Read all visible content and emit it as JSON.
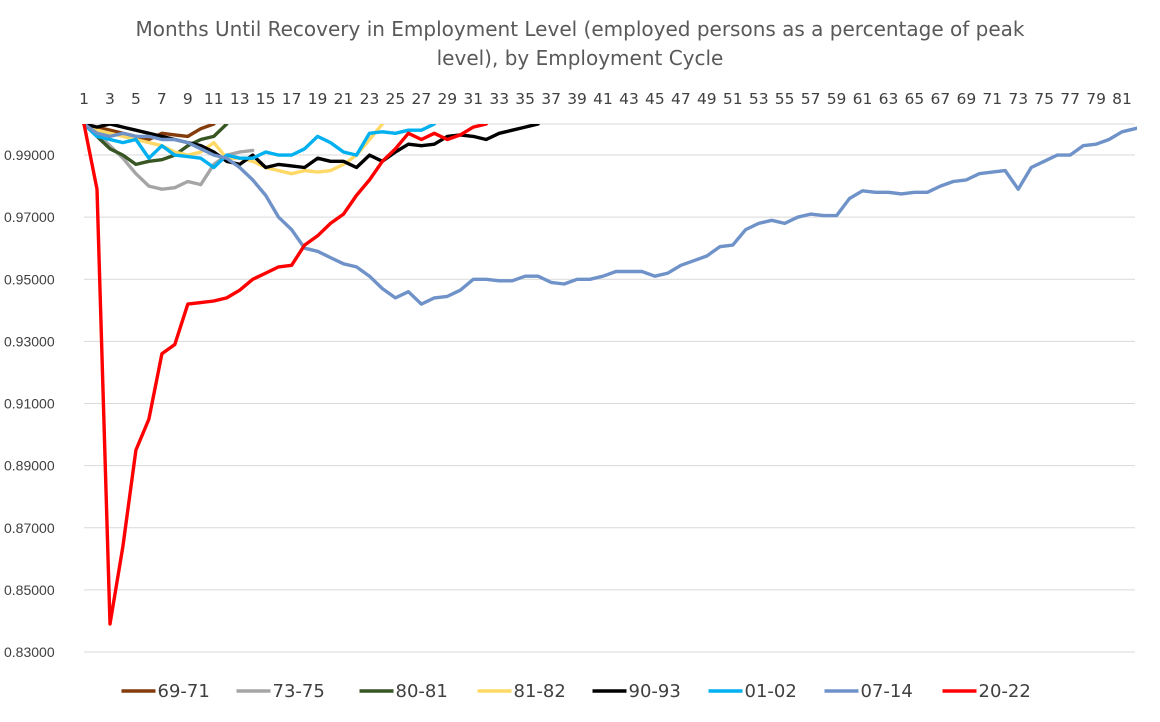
{
  "chart_data": {
    "type": "line",
    "title": "Months Until Recovery in Employment Level (employed persons as a percentage of peak level), by Employment Cycle",
    "title_lines": [
      "Months Until Recovery in Employment Level (employed persons as a percentage of peak",
      "level), by Employment Cycle"
    ],
    "xlabel": "",
    "ylabel": "",
    "x_axis_position": "top",
    "x_ticks": [
      1,
      3,
      5,
      7,
      9,
      11,
      13,
      15,
      17,
      19,
      21,
      23,
      25,
      27,
      29,
      31,
      33,
      35,
      37,
      39,
      41,
      43,
      45,
      47,
      49,
      51,
      53,
      55,
      57,
      59,
      61,
      63,
      65,
      67,
      69,
      71,
      73,
      75,
      77,
      79,
      81
    ],
    "x_tick_labels": [
      "1",
      "3",
      "5",
      "7",
      "9",
      "11",
      "13",
      "15",
      "17",
      "19",
      "21",
      "23",
      "25",
      "27",
      "29",
      "31",
      "33",
      "35",
      "37",
      "39",
      "41",
      "43",
      "45",
      "47",
      "49",
      "51",
      "53",
      "55",
      "57",
      "59",
      "61",
      "63",
      "65",
      "67",
      "69",
      "71",
      "73",
      "75",
      "77",
      "79",
      "81"
    ],
    "xlim": [
      1,
      82
    ],
    "y_ticks": [
      0.83,
      0.85,
      0.87,
      0.89,
      0.91,
      0.93,
      0.95,
      0.97,
      0.99
    ],
    "y_tick_labels": [
      "0.83000",
      "0.85000",
      "0.87000",
      "0.89000",
      "0.91000",
      "0.93000",
      "0.95000",
      "0.97000",
      "0.99000"
    ],
    "ylim": [
      0.83,
      1.0
    ],
    "grid": true,
    "legend_position": "bottom",
    "series": [
      {
        "name": "69-71",
        "color": "#843c0c",
        "start_x": 1,
        "values": [
          1.0,
          0.999,
          0.998,
          0.997,
          0.996,
          0.995,
          0.997,
          0.9965,
          0.996,
          0.9985,
          1.0
        ]
      },
      {
        "name": "73-75",
        "color": "#a5a5a5",
        "start_x": 1,
        "values": [
          1.0,
          0.997,
          0.993,
          0.989,
          0.984,
          0.98,
          0.979,
          0.9795,
          0.9815,
          0.9805,
          0.987,
          0.99,
          0.991,
          0.9915
        ]
      },
      {
        "name": "80-81",
        "color": "#375623",
        "start_x": 1,
        "values": [
          1.0,
          0.996,
          0.992,
          0.99,
          0.987,
          0.988,
          0.9885,
          0.99,
          0.993,
          0.995,
          0.996,
          1.0
        ]
      },
      {
        "name": "81-82",
        "color": "#ffd966",
        "start_x": 1,
        "values": [
          1.0,
          0.998,
          0.997,
          0.996,
          0.995,
          0.994,
          0.993,
          0.991,
          0.99,
          0.991,
          0.994,
          0.989,
          0.989,
          0.988,
          0.986,
          0.985,
          0.984,
          0.985,
          0.9845,
          0.985,
          0.987,
          0.99,
          0.995,
          1.0
        ]
      },
      {
        "name": "90-93",
        "color": "#000000",
        "start_x": 1,
        "values": [
          1.0,
          0.999,
          1.0,
          0.999,
          0.998,
          0.997,
          0.996,
          0.995,
          0.994,
          0.993,
          0.991,
          0.988,
          0.987,
          0.99,
          0.986,
          0.987,
          0.9865,
          0.986,
          0.989,
          0.988,
          0.988,
          0.986,
          0.99,
          0.988,
          0.991,
          0.9935,
          0.993,
          0.9935,
          0.996,
          0.9965,
          0.996,
          0.995,
          0.997,
          0.998,
          0.999,
          1.0
        ]
      },
      {
        "name": "01-02",
        "color": "#00b0f0",
        "start_x": 1,
        "values": [
          1.0,
          0.996,
          0.995,
          0.994,
          0.995,
          0.989,
          0.993,
          0.99,
          0.9895,
          0.989,
          0.986,
          0.99,
          0.989,
          0.989,
          0.991,
          0.99,
          0.99,
          0.992,
          0.996,
          0.994,
          0.991,
          0.99,
          0.997,
          0.9975,
          0.997,
          0.998,
          0.998,
          1.0
        ]
      },
      {
        "name": "07-14",
        "color": "#6f92c9",
        "start_x": 1,
        "values": [
          1.0,
          0.997,
          0.996,
          0.997,
          0.996,
          0.996,
          0.995,
          0.995,
          0.994,
          0.992,
          0.99,
          0.989,
          0.986,
          0.982,
          0.977,
          0.97,
          0.966,
          0.96,
          0.959,
          0.957,
          0.955,
          0.954,
          0.951,
          0.947,
          0.944,
          0.946,
          0.942,
          0.944,
          0.9445,
          0.9465,
          0.95,
          0.95,
          0.9495,
          0.9495,
          0.951,
          0.951,
          0.949,
          0.9485,
          0.95,
          0.95,
          0.951,
          0.9525,
          0.9525,
          0.9525,
          0.951,
          0.952,
          0.9545,
          0.956,
          0.9575,
          0.9605,
          0.961,
          0.966,
          0.968,
          0.969,
          0.968,
          0.97,
          0.971,
          0.9705,
          0.9705,
          0.976,
          0.9785,
          0.978,
          0.978,
          0.9775,
          0.978,
          0.978,
          0.98,
          0.9815,
          0.982,
          0.984,
          0.9845,
          0.985,
          0.979,
          0.986,
          0.988,
          0.99,
          0.99,
          0.993,
          0.9935,
          0.995,
          0.9975,
          0.9985,
          0.9995
        ]
      },
      {
        "name": "20-22",
        "color": "#ff0000",
        "start_x": 1,
        "values": [
          1.0,
          0.979,
          0.839,
          0.864,
          0.895,
          0.905,
          0.926,
          0.929,
          0.942,
          0.9425,
          0.943,
          0.944,
          0.9465,
          0.95,
          0.952,
          0.954,
          0.9545,
          0.961,
          0.964,
          0.968,
          0.971,
          0.977,
          0.982,
          0.988,
          0.992,
          0.997,
          0.995,
          0.997,
          0.995,
          0.9965,
          0.999,
          1.0
        ]
      }
    ]
  }
}
